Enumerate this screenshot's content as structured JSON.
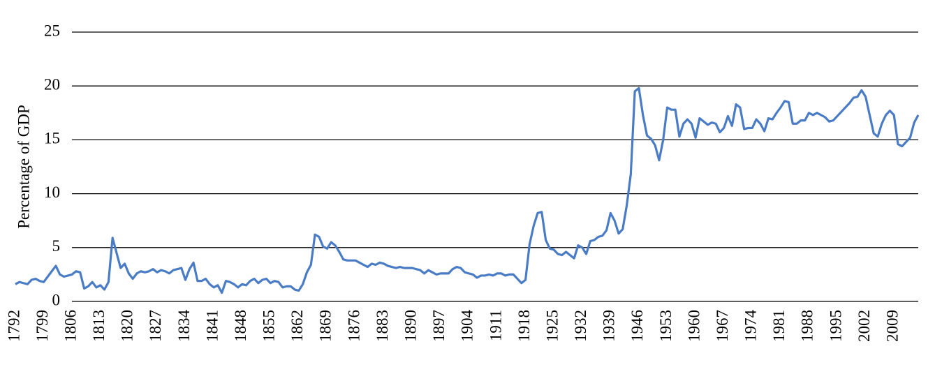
{
  "chart_data": {
    "type": "line",
    "ylabel": "Percentage of GDP",
    "categories": [
      "1792",
      null,
      null,
      null,
      null,
      null,
      null,
      "1799",
      null,
      null,
      null,
      null,
      null,
      null,
      "1806",
      null,
      null,
      null,
      null,
      null,
      null,
      "1813",
      null,
      null,
      null,
      null,
      null,
      null,
      "1820",
      null,
      null,
      null,
      null,
      null,
      null,
      "1827",
      null,
      null,
      null,
      null,
      null,
      null,
      "1834",
      null,
      null,
      null,
      null,
      null,
      null,
      "1841",
      null,
      null,
      null,
      null,
      null,
      null,
      "1848",
      null,
      null,
      null,
      null,
      null,
      null,
      "1855",
      null,
      null,
      null,
      null,
      null,
      null,
      "1862",
      null,
      null,
      null,
      null,
      null,
      null,
      "1869",
      null,
      null,
      null,
      null,
      null,
      null,
      "1876",
      null,
      null,
      null,
      null,
      null,
      null,
      "1883",
      null,
      null,
      null,
      null,
      null,
      null,
      "1890",
      null,
      null,
      null,
      null,
      null,
      null,
      "1897",
      null,
      null,
      null,
      null,
      null,
      null,
      "1904",
      null,
      null,
      null,
      null,
      null,
      null,
      "1911",
      null,
      null,
      null,
      null,
      null,
      null,
      "1918",
      null,
      null,
      null,
      null,
      null,
      null,
      "1925",
      null,
      null,
      null,
      null,
      null,
      null,
      "1932",
      null,
      null,
      null,
      null,
      null,
      null,
      "1939",
      null,
      null,
      null,
      null,
      null,
      null,
      "1946",
      null,
      null,
      null,
      null,
      null,
      null,
      "1953",
      null,
      null,
      null,
      null,
      null,
      null,
      "1960",
      null,
      null,
      null,
      null,
      null,
      null,
      "1967",
      null,
      null,
      null,
      null,
      null,
      null,
      "1974",
      null,
      null,
      null,
      null,
      null,
      null,
      "1981",
      null,
      null,
      null,
      null,
      null,
      null,
      "1988",
      null,
      null,
      null,
      null,
      null,
      null,
      "1995",
      null,
      null,
      null,
      null,
      null,
      null,
      "2002",
      null,
      null,
      null,
      null,
      null,
      null,
      "2009",
      null,
      null,
      null,
      null,
      null,
      null
    ],
    "values": [
      1.6,
      1.8,
      1.7,
      1.6,
      2.0,
      2.1,
      1.9,
      1.8,
      2.3,
      2.8,
      3.3,
      2.5,
      2.3,
      2.4,
      2.5,
      2.8,
      2.7,
      1.2,
      1.4,
      1.8,
      1.3,
      1.5,
      1.1,
      1.8,
      5.9,
      4.5,
      3.1,
      3.5,
      2.6,
      2.1,
      2.6,
      2.8,
      2.7,
      2.8,
      3.0,
      2.7,
      2.9,
      2.8,
      2.6,
      2.9,
      3.0,
      3.1,
      2.0,
      3.0,
      3.6,
      1.9,
      1.9,
      2.1,
      1.6,
      1.3,
      1.5,
      0.8,
      1.9,
      1.8,
      1.6,
      1.3,
      1.6,
      1.5,
      1.9,
      2.1,
      1.7,
      2.0,
      2.1,
      1.7,
      1.9,
      1.8,
      1.3,
      1.4,
      1.4,
      1.1,
      1.0,
      1.6,
      2.7,
      3.4,
      6.2,
      6.0,
      5.1,
      4.9,
      5.5,
      5.2,
      4.6,
      3.9,
      3.8,
      3.8,
      3.8,
      3.6,
      3.4,
      3.2,
      3.5,
      3.4,
      3.6,
      3.5,
      3.3,
      3.2,
      3.1,
      3.2,
      3.1,
      3.1,
      3.1,
      3.0,
      2.9,
      2.6,
      2.9,
      2.7,
      2.5,
      2.6,
      2.6,
      2.6,
      3.0,
      3.2,
      3.1,
      2.7,
      2.6,
      2.5,
      2.2,
      2.4,
      2.4,
      2.5,
      2.4,
      2.6,
      2.6,
      2.4,
      2.5,
      2.5,
      2.1,
      1.7,
      2.0,
      5.3,
      7.0,
      8.2,
      8.3,
      5.7,
      4.9,
      4.8,
      4.4,
      4.3,
      4.6,
      4.3,
      4.0,
      5.2,
      5.0,
      4.4,
      5.6,
      5.7,
      6.0,
      6.1,
      6.6,
      8.2,
      7.5,
      6.3,
      6.7,
      8.9,
      11.8,
      19.5,
      19.8,
      17.3,
      15.4,
      15.1,
      14.5,
      13.1,
      15.0,
      18.0,
      17.8,
      17.8,
      15.3,
      16.5,
      16.9,
      16.5,
      15.2,
      17.0,
      16.7,
      16.4,
      16.6,
      16.5,
      15.7,
      16.1,
      17.2,
      16.3,
      18.3,
      18.0,
      16.0,
      16.1,
      16.1,
      16.9,
      16.5,
      15.8,
      17.0,
      16.9,
      17.5,
      18.0,
      18.6,
      18.5,
      16.5,
      16.5,
      16.8,
      16.8,
      17.5,
      17.3,
      17.5,
      17.3,
      17.1,
      16.7,
      16.8,
      17.2,
      17.6,
      18.0,
      18.4,
      18.9,
      19.0,
      19.6,
      19.0,
      17.3,
      15.6,
      15.3,
      16.5,
      17.3,
      17.7,
      17.3,
      14.6,
      14.4,
      14.8,
      15.2,
      16.6,
      17.3
    ],
    "color": "#4a7cc6",
    "ylim": [
      0,
      25
    ],
    "yticks": [
      0,
      5,
      10,
      15,
      20,
      25
    ],
    "grid": true
  }
}
